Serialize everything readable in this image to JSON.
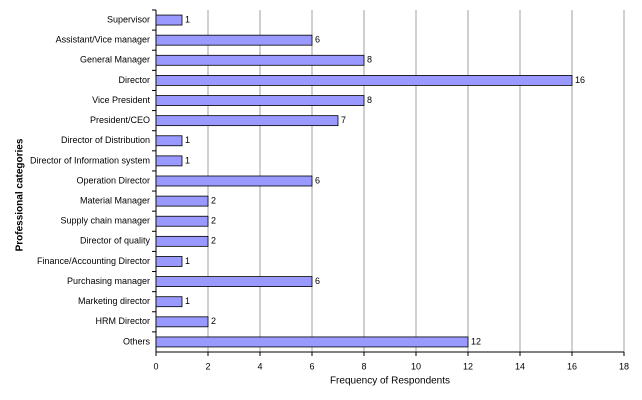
{
  "chart_data": {
    "type": "barh",
    "x_label": "Frequency of Respondents",
    "y_label": "Professional categories",
    "categories": [
      "Supervisor",
      "Assistant/Vice manager",
      "General Manager",
      "Director",
      "Vice President",
      "President/CEO",
      "Director of Distribution",
      "Director of Information system",
      "Operation Director",
      "Material Manager",
      "Supply chain manager",
      "Director of quality",
      "Finance/Accounting Director",
      "Purchasing manager",
      "Marketing director",
      "HRM Director",
      "Others"
    ],
    "values": [
      1,
      6,
      8,
      16,
      8,
      7,
      1,
      1,
      6,
      2,
      2,
      2,
      1,
      6,
      1,
      2,
      12
    ],
    "color": "#9999ff",
    "xlim": [
      0,
      18
    ],
    "xticks": [
      0,
      2,
      4,
      6,
      8,
      10,
      12,
      14,
      16,
      18
    ],
    "grid": true
  }
}
